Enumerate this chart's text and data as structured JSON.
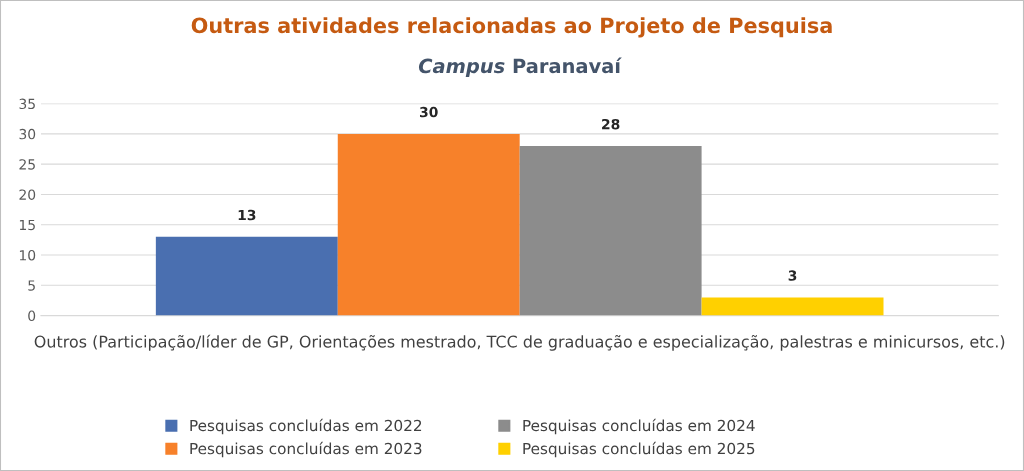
{
  "chart_data": {
    "type": "bar",
    "title": "Outras atividades relacionadas ao Projeto de Pesquisa",
    "subtitle": "Campus Paranavaí",
    "categories": [
      "Outros (Participação/líder de GP, Orientações mestrado, TCC de graduação e especialização, palestras e minicursos, etc.)"
    ],
    "series": [
      {
        "name": "Pesquisas concluídas em 2022",
        "color": "#4a6fb0",
        "values": [
          13
        ]
      },
      {
        "name": "Pesquisas concluídas em 2023",
        "color": "#f7812a",
        "values": [
          30
        ]
      },
      {
        "name": "Pesquisas concluídas em 2024",
        "color": "#8c8c8c",
        "values": [
          28
        ]
      },
      {
        "name": "Pesquisas concluídas em 2025",
        "color": "#ffd000",
        "values": [
          3
        ]
      }
    ],
    "ylim": [
      0,
      35
    ],
    "yticks": [
      0,
      5,
      10,
      15,
      20,
      25,
      30,
      35
    ],
    "grid": "y",
    "legend": "bottom",
    "data_labels": true
  }
}
